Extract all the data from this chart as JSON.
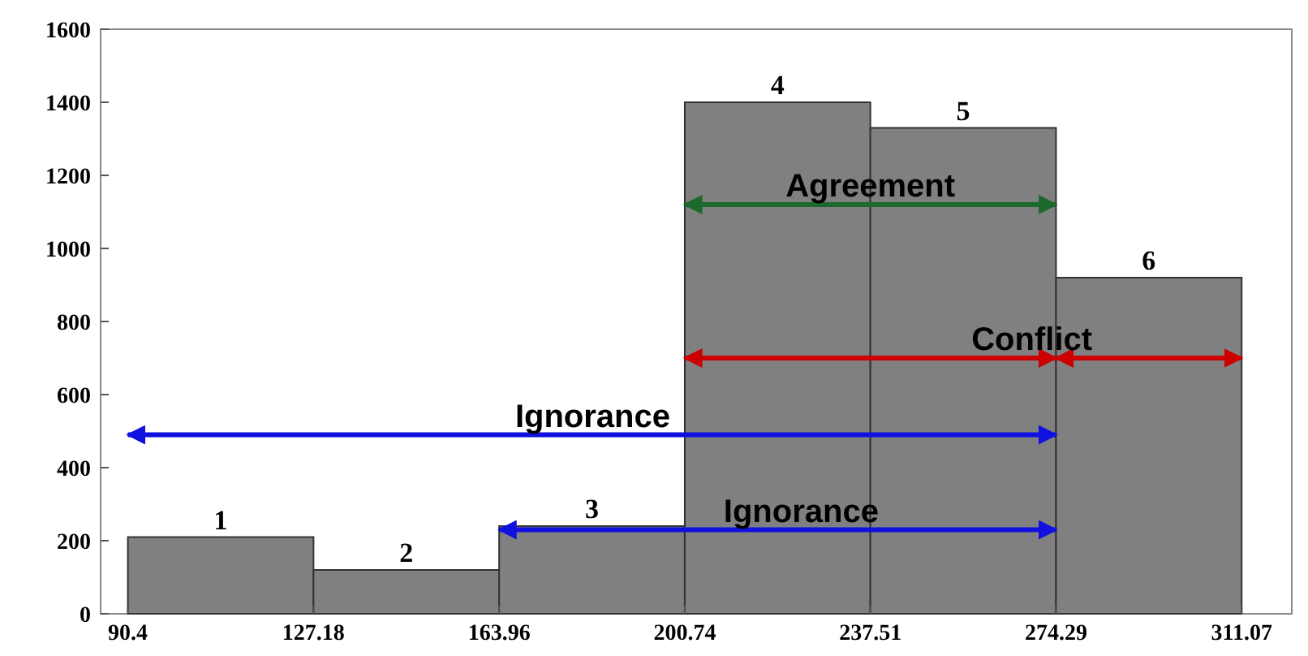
{
  "chart_data": {
    "type": "histogram",
    "xlim": [
      85,
      321
    ],
    "xticks": [
      90.4,
      127.18,
      163.96,
      200.74,
      237.51,
      274.29,
      311.07
    ],
    "ylim": [
      0,
      1600
    ],
    "yticks": [
      0,
      200,
      400,
      600,
      800,
      1000,
      1200,
      1400,
      1600
    ],
    "series": [
      {
        "color": "#808080",
        "bins": [
          90.4,
          127.18,
          163.96,
          200.74,
          237.51,
          274.29,
          311.07
        ],
        "values": [
          210,
          120,
          240,
          1400,
          1330,
          920
        ]
      },
      {
        "type": "line",
        "color": "#1b6a2c",
        "x": [
          200.74,
          274.29
        ],
        "values": [
          1120,
          1120
        ]
      },
      {
        "type": "line",
        "color": "#cc0000",
        "x": [
          200.74,
          274.29
        ],
        "values": [
          700,
          700
        ]
      },
      {
        "type": "line",
        "color": "#cc0000",
        "x": [
          274.29,
          311.07
        ],
        "values": [
          700,
          700
        ]
      },
      {
        "type": "line",
        "color": "#1010e0",
        "x": [
          90.4,
          274.29
        ],
        "values": [
          490,
          490
        ]
      },
      {
        "type": "line",
        "color": "#1010e0",
        "x": [
          163.96,
          274.29
        ],
        "values": [
          230,
          230
        ]
      }
    ],
    "annotations": [
      {
        "text": "1",
        "x": 108.79,
        "y": 210
      },
      {
        "text": "2",
        "x": 145.57,
        "y": 120
      },
      {
        "text": "3",
        "x": 182.35,
        "y": 240
      },
      {
        "text": "4",
        "x": 219.13,
        "y": 1400
      },
      {
        "text": "5",
        "x": 255.9,
        "y": 1330
      },
      {
        "text": "6",
        "x": 292.68,
        "y": 920
      },
      {
        "text": "Agreement",
        "x": 237.51,
        "y": 1120
      },
      {
        "text": "Conflict",
        "x": 269.5,
        "y": 700
      },
      {
        "text": "Ignorance",
        "x": 182.5,
        "y": 490
      },
      {
        "text": "Ignorance",
        "x": 223.8,
        "y": 230
      }
    ]
  }
}
